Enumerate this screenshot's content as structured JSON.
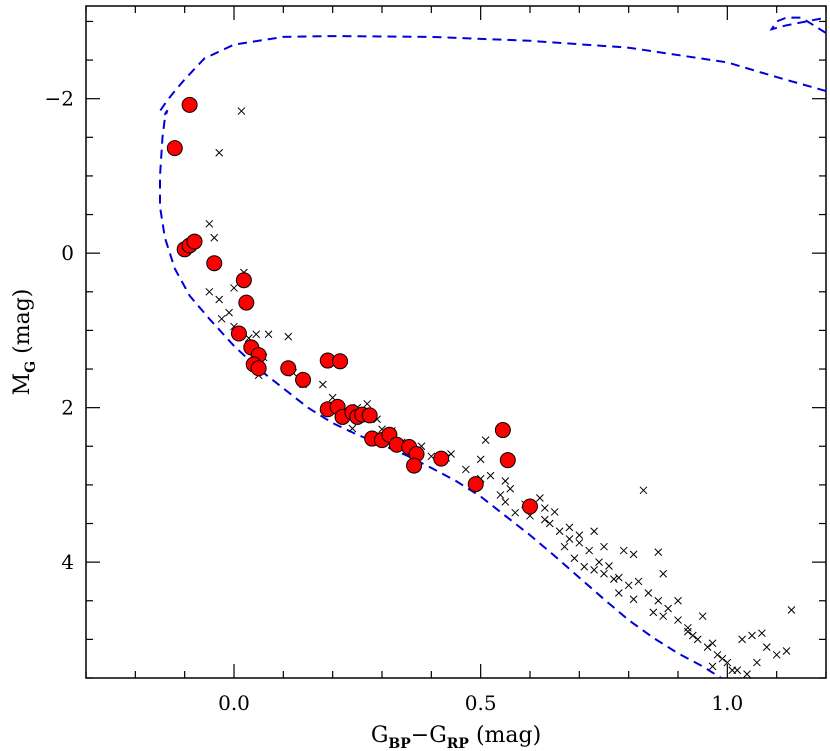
{
  "chart_data": {
    "type": "scatter",
    "xlabel": {
      "main": "G",
      "sub1": "BP",
      "mid": "−G",
      "sub2": "RP",
      "unit": " (mag)"
    },
    "ylabel": {
      "main": "M",
      "sub": "G",
      "unit": " (mag)"
    },
    "xlim": [
      -0.3,
      1.2
    ],
    "ylim": [
      5.5,
      -3.2
    ],
    "y_inverted": true,
    "grid": false,
    "x_ticks": [
      {
        "value": 0.0,
        "label": "0.0"
      },
      {
        "value": 0.5,
        "label": "0.5"
      },
      {
        "value": 1.0,
        "label": "1.0"
      }
    ],
    "y_ticks": [
      {
        "value": -2,
        "label": "−2"
      },
      {
        "value": 0,
        "label": "0"
      },
      {
        "value": 2,
        "label": "2"
      },
      {
        "value": 4,
        "label": "4"
      }
    ],
    "series": [
      {
        "style": "filled-circle",
        "color": "#ff0000",
        "points": [
          [
            -0.12,
            -1.36
          ],
          [
            -0.09,
            -1.92
          ],
          [
            -0.1,
            -0.05
          ],
          [
            -0.09,
            -0.1
          ],
          [
            -0.08,
            -0.15
          ],
          [
            -0.04,
            0.13
          ],
          [
            0.02,
            0.35
          ],
          [
            0.025,
            0.64
          ],
          [
            0.01,
            1.04
          ],
          [
            0.035,
            1.22
          ],
          [
            0.05,
            1.32
          ],
          [
            0.04,
            1.44
          ],
          [
            0.05,
            1.49
          ],
          [
            0.11,
            1.49
          ],
          [
            0.14,
            1.64
          ],
          [
            0.19,
            1.39
          ],
          [
            0.215,
            1.4
          ],
          [
            0.19,
            2.02
          ],
          [
            0.21,
            1.99
          ],
          [
            0.22,
            2.12
          ],
          [
            0.24,
            2.06
          ],
          [
            0.25,
            2.12
          ],
          [
            0.26,
            2.09
          ],
          [
            0.275,
            2.1
          ],
          [
            0.28,
            2.4
          ],
          [
            0.3,
            2.42
          ],
          [
            0.315,
            2.35
          ],
          [
            0.33,
            2.48
          ],
          [
            0.355,
            2.51
          ],
          [
            0.37,
            2.6
          ],
          [
            0.365,
            2.75
          ],
          [
            0.42,
            2.66
          ],
          [
            0.49,
            2.99
          ],
          [
            0.545,
            2.29
          ],
          [
            0.555,
            2.68
          ],
          [
            0.6,
            3.28
          ]
        ]
      },
      {
        "style": "cross",
        "color": "#000000",
        "points": [
          [
            0.015,
            -1.84
          ],
          [
            -0.03,
            -1.3
          ],
          [
            -0.05,
            -0.38
          ],
          [
            -0.04,
            -0.2
          ],
          [
            -0.05,
            0.5
          ],
          [
            0.02,
            0.25
          ],
          [
            -0.025,
            0.85
          ],
          [
            -0.01,
            0.77
          ],
          [
            0.045,
            1.05
          ],
          [
            0.07,
            1.05
          ],
          [
            0.11,
            1.08
          ],
          [
            0.05,
            1.58
          ],
          [
            0.14,
            1.7
          ],
          [
            0.2,
            1.87
          ],
          [
            0.27,
            1.95
          ],
          [
            0.29,
            2.15
          ],
          [
            0.24,
            2.27
          ],
          [
            0.3,
            2.28
          ],
          [
            0.34,
            2.45
          ],
          [
            0.4,
            2.63
          ],
          [
            0.43,
            2.65
          ],
          [
            0.44,
            2.6
          ],
          [
            0.5,
            2.67
          ],
          [
            0.51,
            2.42
          ],
          [
            0.5,
            2.92
          ],
          [
            0.52,
            2.88
          ],
          [
            0.54,
            3.13
          ],
          [
            0.55,
            3.22
          ],
          [
            0.57,
            3.36
          ],
          [
            0.59,
            3.25
          ],
          [
            0.63,
            3.45
          ],
          [
            0.65,
            3.35
          ],
          [
            0.62,
            3.17
          ],
          [
            0.64,
            3.5
          ],
          [
            0.66,
            3.6
          ],
          [
            0.68,
            3.55
          ],
          [
            0.68,
            3.7
          ],
          [
            0.7,
            3.75
          ],
          [
            0.72,
            3.85
          ],
          [
            0.73,
            3.6
          ],
          [
            0.75,
            3.8
          ],
          [
            0.74,
            4.0
          ],
          [
            0.76,
            4.05
          ],
          [
            0.78,
            4.2
          ],
          [
            0.8,
            4.3
          ],
          [
            0.82,
            4.25
          ],
          [
            0.79,
            3.85
          ],
          [
            0.81,
            3.9
          ],
          [
            0.83,
            3.07
          ],
          [
            0.86,
            3.87
          ],
          [
            0.87,
            4.15
          ],
          [
            0.84,
            4.4
          ],
          [
            0.86,
            4.5
          ],
          [
            0.88,
            4.6
          ],
          [
            0.9,
            4.75
          ],
          [
            0.92,
            4.9
          ],
          [
            0.94,
            5.0
          ],
          [
            0.96,
            5.1
          ],
          [
            0.98,
            5.2
          ],
          [
            1.0,
            5.3
          ],
          [
            1.02,
            5.4
          ],
          [
            1.04,
            5.45
          ],
          [
            1.06,
            5.3
          ],
          [
            1.05,
            4.95
          ],
          [
            1.08,
            5.1
          ],
          [
            1.1,
            5.2
          ],
          [
            1.12,
            5.15
          ],
          [
            1.13,
            4.62
          ],
          [
            0.9,
            4.5
          ],
          [
            0.92,
            4.85
          ],
          [
            0.95,
            4.7
          ],
          [
            0.97,
            5.05
          ],
          [
            0.99,
            5.25
          ],
          [
            1.03,
            5.0
          ],
          [
            0.85,
            4.65
          ],
          [
            0.81,
            4.48
          ],
          [
            0.77,
            4.22
          ],
          [
            0.73,
            4.1
          ],
          [
            0.71,
            4.06
          ],
          [
            0.69,
            3.95
          ],
          [
            0.67,
            3.8
          ],
          [
            0.6,
            3.4
          ],
          [
            0.56,
            3.05
          ],
          [
            0.47,
            2.8
          ],
          [
            0.55,
            2.95
          ],
          [
            0.63,
            3.3
          ],
          [
            0.7,
            3.65
          ],
          [
            0.75,
            4.15
          ],
          [
            0.78,
            4.4
          ],
          [
            0.87,
            4.7
          ],
          [
            0.93,
            4.95
          ],
          [
            0.97,
            5.35
          ],
          [
            1.01,
            5.4
          ],
          [
            1.07,
            4.92
          ],
          [
            0.38,
            2.5
          ],
          [
            0.32,
            2.3
          ],
          [
            0.25,
            2.0
          ],
          [
            0.18,
            1.7
          ],
          [
            0.12,
            1.55
          ],
          [
            0.06,
            1.35
          ],
          [
            0.03,
            1.1
          ],
          [
            0.0,
            0.95
          ],
          [
            -0.03,
            0.6
          ],
          [
            0.0,
            0.45
          ]
        ]
      },
      {
        "style": "dashed-line",
        "color": "#0000dd",
        "points": [
          [
            1.2,
            -2.1
          ],
          [
            1.1,
            -2.28
          ],
          [
            1.0,
            -2.47
          ],
          [
            0.8,
            -2.66
          ],
          [
            0.6,
            -2.75
          ],
          [
            0.4,
            -2.8
          ],
          [
            0.2,
            -2.81
          ],
          [
            0.1,
            -2.8
          ],
          [
            0.0,
            -2.7
          ],
          [
            -0.06,
            -2.52
          ],
          [
            -0.1,
            -2.25
          ],
          [
            -0.12,
            -2.1
          ],
          [
            -0.135,
            -1.98
          ],
          [
            -0.15,
            -1.84
          ],
          [
            -0.14,
            -1.8
          ],
          [
            -0.135,
            -1.85
          ],
          [
            -0.14,
            -1.75
          ],
          [
            -0.145,
            -1.5
          ],
          [
            -0.15,
            -1.0
          ],
          [
            -0.15,
            -0.6
          ],
          [
            -0.14,
            -0.2
          ],
          [
            -0.12,
            0.2
          ],
          [
            -0.09,
            0.55
          ],
          [
            -0.05,
            0.85
          ],
          [
            0.0,
            1.2
          ],
          [
            0.05,
            1.5
          ],
          [
            0.1,
            1.75
          ],
          [
            0.15,
            2.0
          ],
          [
            0.2,
            2.2
          ],
          [
            0.25,
            2.35
          ],
          [
            0.3,
            2.48
          ],
          [
            0.35,
            2.62
          ],
          [
            0.4,
            2.78
          ],
          [
            0.45,
            2.95
          ],
          [
            0.5,
            3.15
          ],
          [
            0.55,
            3.4
          ],
          [
            0.6,
            3.65
          ],
          [
            0.65,
            3.92
          ],
          [
            0.7,
            4.2
          ],
          [
            0.75,
            4.48
          ],
          [
            0.8,
            4.75
          ],
          [
            0.85,
            4.98
          ],
          [
            0.9,
            5.18
          ],
          [
            0.95,
            5.35
          ],
          [
            1.0,
            5.55
          ]
        ]
      },
      {
        "style": "dashed-line",
        "color": "#0000dd",
        "points": [
          [
            1.2,
            -2.85
          ],
          [
            1.15,
            -3.05
          ],
          [
            1.12,
            -3.05
          ],
          [
            1.1,
            -3.0
          ],
          [
            1.09,
            -2.9
          ],
          [
            1.12,
            -2.95
          ],
          [
            1.2,
            -3.05
          ]
        ]
      }
    ]
  }
}
